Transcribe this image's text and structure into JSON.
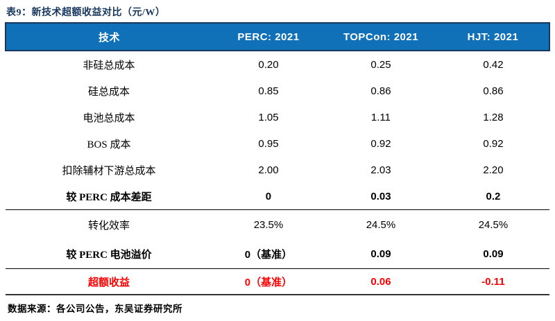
{
  "title": {
    "prefix": "表9：",
    "text": "新技术超额收益对比（元/W）"
  },
  "colors": {
    "header_bg": "#1070B8",
    "header_border": "#17375E",
    "title_navy": "#17375E",
    "highlight_red": "#FF0000"
  },
  "table": {
    "header": {
      "tech_label": "技术",
      "columns": [
        "PERC:  2021",
        "TOPCon:  2021",
        "HJT:  2021"
      ]
    },
    "rows": [
      {
        "label": "非硅总成本",
        "values": [
          "0.20",
          "0.25",
          "0.42"
        ]
      },
      {
        "label": "硅总成本",
        "values": [
          "0.85",
          "0.86",
          "0.86"
        ]
      },
      {
        "label": "电池总成本",
        "values": [
          "1.05",
          "1.11",
          "1.28"
        ]
      },
      {
        "label": "BOS 成本",
        "values": [
          "0.95",
          "0.92",
          "0.92"
        ]
      },
      {
        "label": "扣除辅材下游总成本",
        "values": [
          "2.00",
          "2.03",
          "2.20"
        ]
      },
      {
        "label": "较 PERC 成本差距",
        "values": [
          "0",
          "0.03",
          "0.2"
        ]
      },
      {
        "label": "转化效率",
        "values": [
          "23.5%",
          "24.5%",
          "24.5%"
        ]
      },
      {
        "label": "较 PERC 电池溢价",
        "values": [
          "0（基准）",
          "0.09",
          "0.09"
        ]
      },
      {
        "label": "超额收益",
        "values": [
          "0（基准）",
          "0.06",
          "-0.11"
        ]
      }
    ]
  },
  "footer": {
    "source_text": "数据来源：各公司公告，东吴证券研究所"
  }
}
